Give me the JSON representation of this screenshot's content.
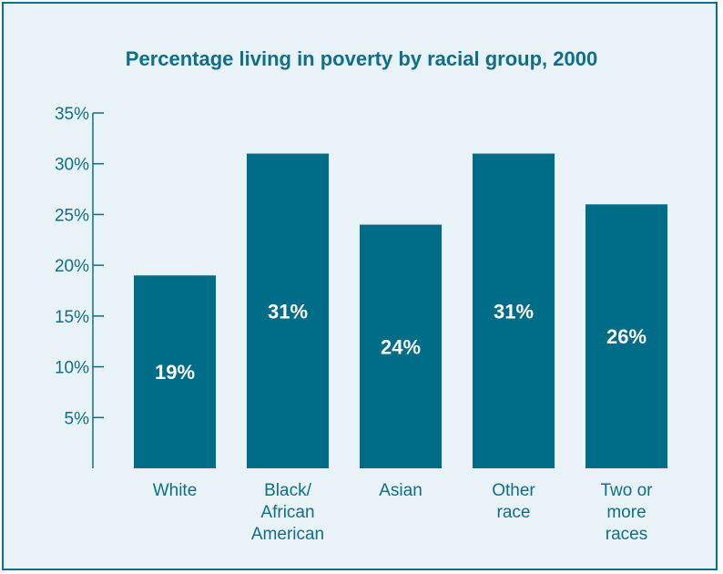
{
  "colors": {
    "bar": "#006d88",
    "text": "#0d6f8a",
    "background": "#e9f2f6",
    "border": "#0d6f8a"
  },
  "chart_data": {
    "type": "bar",
    "title": "Percentage living in poverty by racial group, 2000",
    "xlabel": "",
    "ylabel": "",
    "ylim": [
      0,
      35
    ],
    "y_ticks": [
      5,
      10,
      15,
      20,
      25,
      30,
      35
    ],
    "y_tick_labels": [
      "5%",
      "10%",
      "15%",
      "20%",
      "25%",
      "30%",
      "35%"
    ],
    "categories": [
      "White",
      "Black/ African American",
      "Asian",
      "Other race",
      "Two or more races"
    ],
    "category_lines": [
      [
        "White"
      ],
      [
        "Black/",
        "African",
        "American"
      ],
      [
        "Asian"
      ],
      [
        "Other",
        "race"
      ],
      [
        "Two or",
        "more",
        "races"
      ]
    ],
    "values": [
      19,
      31,
      24,
      31,
      26
    ],
    "data_labels": [
      "19%",
      "31%",
      "24%",
      "31%",
      "26%"
    ],
    "grid": false,
    "legend": "none"
  }
}
